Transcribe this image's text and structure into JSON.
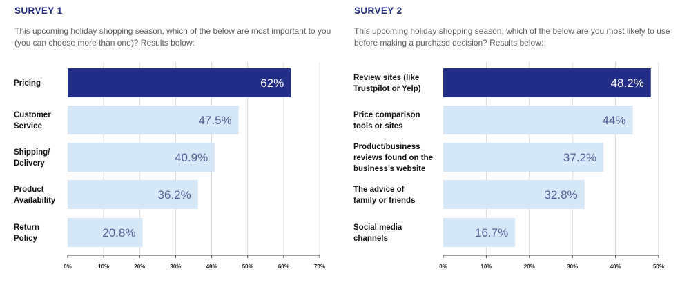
{
  "colors": {
    "title": "#1f2a7c",
    "highlight_bar": "#232f86",
    "bar": "#d6e8f8",
    "highlight_value": "#ffffff",
    "value": "#4e5f93"
  },
  "chart_data": [
    {
      "type": "bar",
      "orientation": "horizontal",
      "title": "SURVEY 1",
      "subtitle": "This upcoming holiday shopping season, which of the below are most important to you (you can choose more than one)? Results below:",
      "categories": [
        [
          "Pricing"
        ],
        [
          "Customer",
          "Service"
        ],
        [
          "Shipping/",
          "Delivery"
        ],
        [
          "Product",
          "Availability"
        ],
        [
          "Return",
          "Policy"
        ]
      ],
      "values": [
        62,
        47.5,
        40.9,
        36.2,
        20.8
      ],
      "value_labels": [
        "62%",
        "47.5%",
        "40.9%",
        "36.2%",
        "20.8%"
      ],
      "highlight_index": 0,
      "xlim": [
        0,
        70
      ],
      "ticks": [
        0,
        10,
        20,
        30,
        40,
        50,
        60,
        70
      ],
      "tick_labels": [
        "0%",
        "10%",
        "20%",
        "30%",
        "40%",
        "50%",
        "60%",
        "70%"
      ],
      "grid": true
    },
    {
      "type": "bar",
      "orientation": "horizontal",
      "title": "SURVEY 2",
      "subtitle": "This upcoming holiday shopping season, which of the below are you most likely to use before making a purchase decision? Results below:",
      "categories": [
        [
          "Review sites (like",
          "Trustpilot or Yelp)"
        ],
        [
          "Price comparison",
          "tools or sites"
        ],
        [
          "Product/business",
          "reviews found on the",
          "business’s website"
        ],
        [
          "The advice of",
          "family or friends"
        ],
        [
          "Social media",
          "channels"
        ]
      ],
      "values": [
        48.2,
        44,
        37.2,
        32.8,
        16.7
      ],
      "value_labels": [
        "48.2%",
        "44%",
        "37.2%",
        "32.8%",
        "16.7%"
      ],
      "highlight_index": 0,
      "xlim": [
        0,
        50
      ],
      "ticks": [
        0,
        10,
        20,
        30,
        40,
        50
      ],
      "tick_labels": [
        "0%",
        "10%",
        "20%",
        "30%",
        "40%",
        "50%"
      ],
      "grid": true
    }
  ]
}
